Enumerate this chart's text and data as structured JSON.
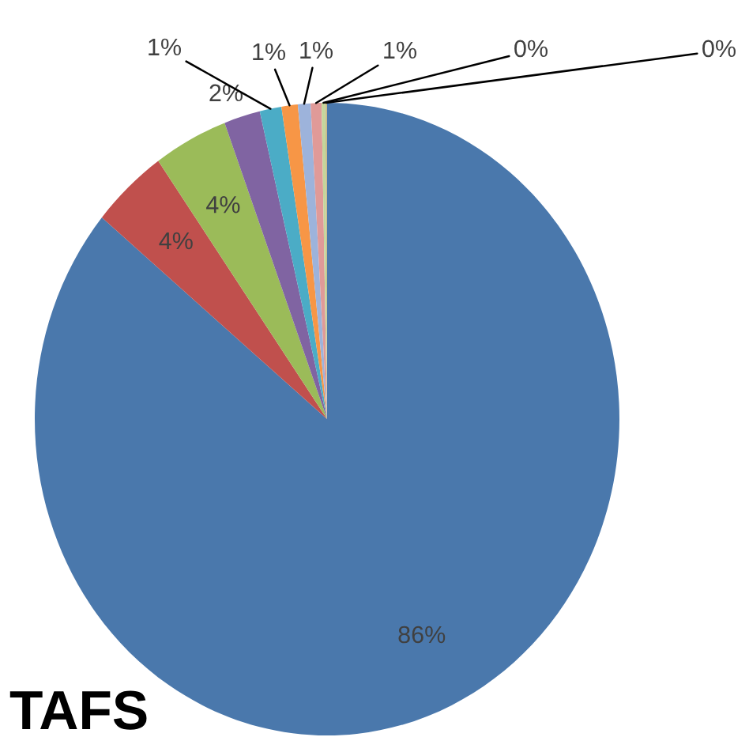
{
  "chart_data": {
    "type": "pie",
    "title": "TAFS",
    "categories": [
      null,
      null,
      null,
      null,
      null,
      null,
      null,
      null,
      null,
      null
    ],
    "values": [
      86.0,
      4.2,
      4.1,
      2.0,
      1.2,
      0.9,
      0.7,
      0.6,
      0.2,
      0.1
    ],
    "colors": [
      "#4a78ac",
      "#c0504d",
      "#9bbb59",
      "#8064a2",
      "#4bacc6",
      "#f79646",
      "#9db3db",
      "#e09a98",
      "#c3d69b",
      "#c9be8e"
    ],
    "value_labels": [
      "86%",
      "4%",
      "4%",
      "2%",
      "1%",
      "1%",
      "1%",
      "1%",
      "0%",
      "0%"
    ]
  }
}
